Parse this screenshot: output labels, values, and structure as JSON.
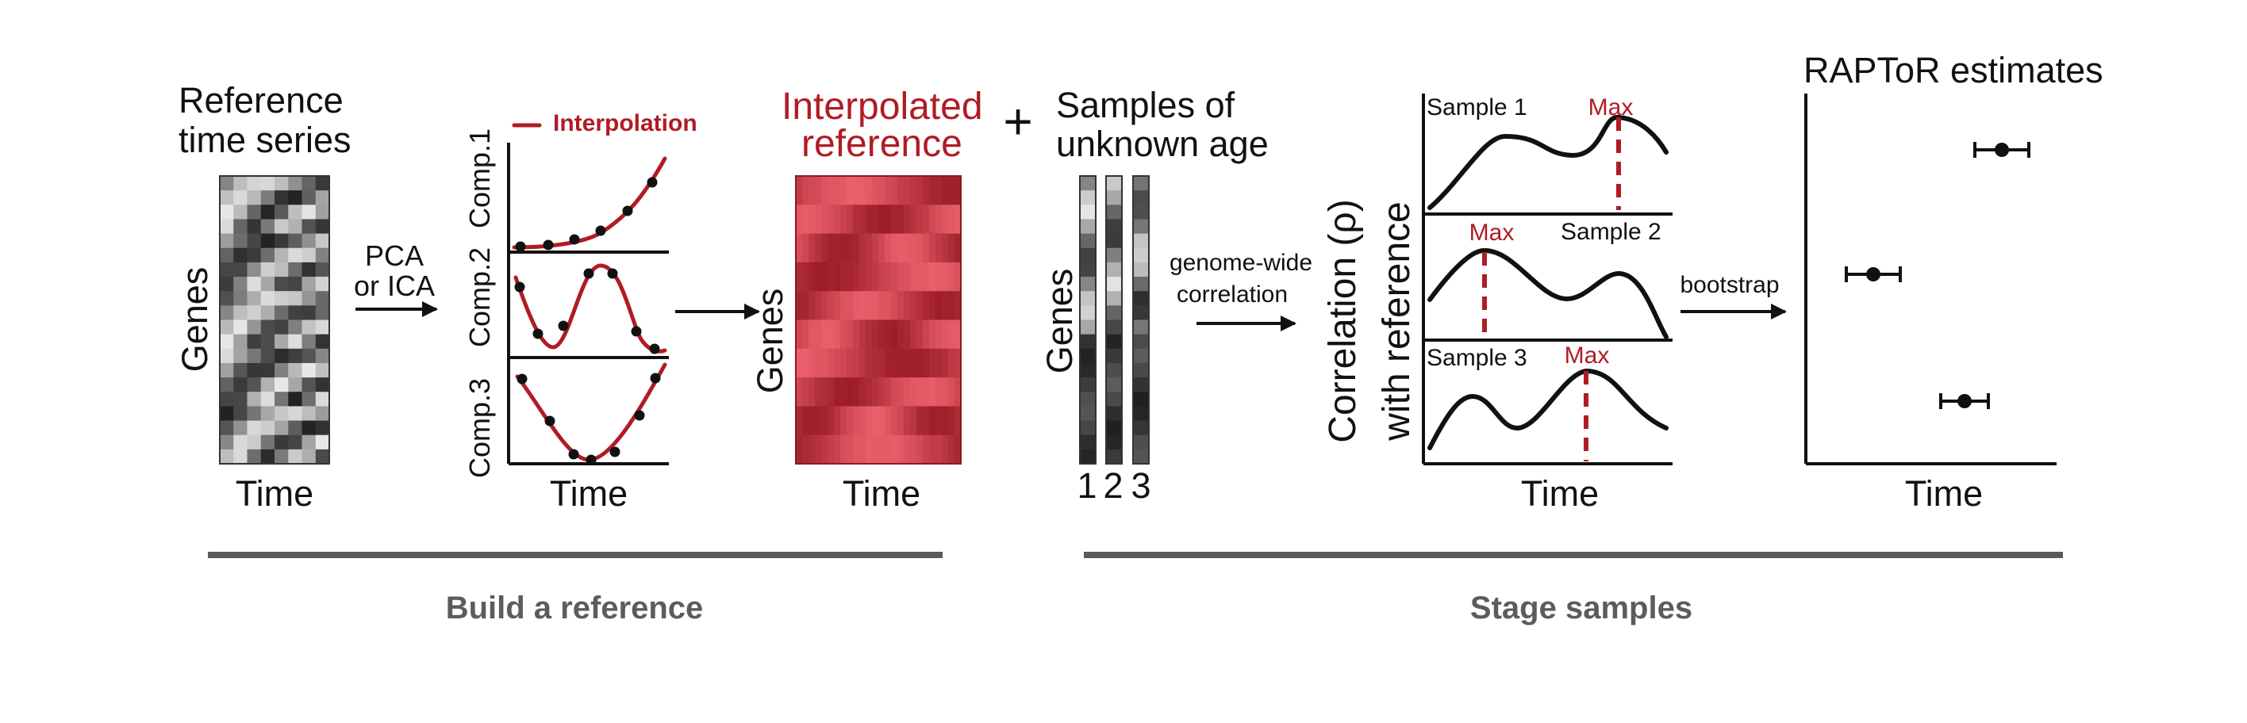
{
  "build": {
    "ref_title_1": "Reference",
    "ref_title_2": "time series",
    "genes": "Genes",
    "time": "Time",
    "pca_1": "PCA",
    "pca_2": "or ICA",
    "legend": "Interpolation",
    "comp1": "Comp.1",
    "comp2": "Comp.2",
    "comp3": "Comp.3",
    "interp_title_1": "Interpolated",
    "interp_title_2": "reference",
    "section": "Build a reference"
  },
  "stage": {
    "plus": "+",
    "samples_title_1": "Samples of",
    "samples_title_2": "unknown age",
    "genes": "Genes",
    "sample_ids": [
      "1",
      "2",
      "3"
    ],
    "gw_1": "genome-wide",
    "gw_2": "correlation",
    "ylabel_1": "Correlation (ρ)",
    "ylabel_2": "with reference",
    "sample1": "Sample 1",
    "sample2": "Sample 2",
    "sample3": "Sample 3",
    "max": "Max",
    "time": "Time",
    "bootstrap": "bootstrap",
    "raptor_title": "RAPToR estimates",
    "section": "Stage samples"
  },
  "colors": {
    "accent_red": "#b01c24",
    "section_gray": "#5c5c5c"
  }
}
